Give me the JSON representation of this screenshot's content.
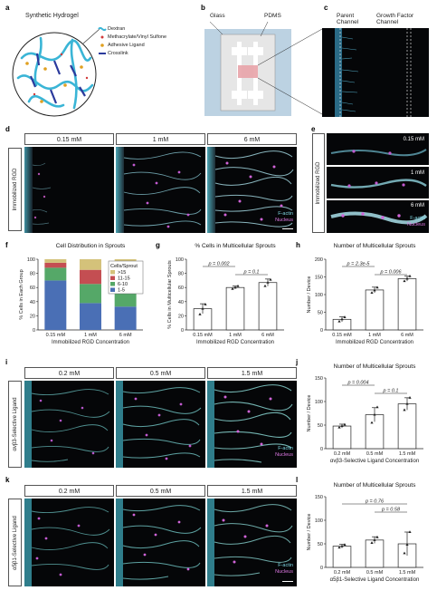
{
  "panels": {
    "a": {
      "letter": "a",
      "title": "Synthetic Hydrogel",
      "legend": [
        "Dextran",
        "Methacrylate/Vinyl Sulfone",
        "Adhesive Ligand",
        "Crosslink"
      ],
      "colors": {
        "dextran": "#3ab5d6",
        "methacrylate": "#d23a3a",
        "ligand": "#e0a020",
        "crosslink": "#2b3a9c"
      }
    },
    "b": {
      "letter": "b",
      "glass": "Glass",
      "pdms": "PDMS"
    },
    "c": {
      "letter": "c",
      "parent": "Parent\nChannel",
      "growth": "Growth Factor\nChannel"
    },
    "d": {
      "letter": "d",
      "side": "Immobilized RGD",
      "concs": [
        "0.15 mM",
        "1 mM",
        "6 mM"
      ],
      "stain1": "F-actin",
      "stain2": "Nucleus"
    },
    "e": {
      "letter": "e",
      "side": "Immobilized RGD",
      "concs": [
        "0.15 mM",
        "1 mM",
        "6 mM"
      ],
      "stain1": "F-actin",
      "stain2": "Nucleus"
    },
    "f": {
      "letter": "f"
    },
    "g": {
      "letter": "g"
    },
    "h": {
      "letter": "h"
    },
    "i": {
      "letter": "i",
      "side": "αvβ3-Selective Ligand",
      "concs": [
        "0.2 mM",
        "0.5 mM",
        "1.5 mM"
      ],
      "stain1": "F-actin",
      "stain2": "Nucleus"
    },
    "j": {
      "letter": "j"
    },
    "k": {
      "letter": "k",
      "side": "α5β1-Selective Ligand",
      "concs": [
        "0.2 mM",
        "0.5 mM",
        "1.5 mM"
      ],
      "stain1": "F-actin",
      "stain2": "Nucleus"
    },
    "l": {
      "letter": "l"
    }
  },
  "chart_data": [
    {
      "id": "f",
      "type": "bar",
      "stacked": true,
      "title": "Cell Distribution in Sprouts",
      "xlabel": "Immobilized RGD Concentration",
      "ylabel": "% Cells in Each Group",
      "categories": [
        "0.15 mM",
        "1 mM",
        "6 mM"
      ],
      "ylim": [
        0,
        100
      ],
      "yticks": [
        0,
        20,
        40,
        60,
        80,
        100
      ],
      "legend_title": "Cells/Sprout",
      "series": [
        {
          "name": "1-5",
          "values": [
            70,
            38,
            33
          ],
          "color": "#4a6fb5"
        },
        {
          "name": "6-10",
          "values": [
            18,
            27,
            27
          ],
          "color": "#55a868"
        },
        {
          "name": "11-15",
          "values": [
            7,
            20,
            17
          ],
          "color": "#c44e52"
        },
        {
          "name": ">15",
          "values": [
            5,
            15,
            23
          ],
          "color": "#d4c27a"
        }
      ]
    },
    {
      "id": "g",
      "type": "bar",
      "title": "% Cells in Multicellular Sprouts",
      "xlabel": "Immobilized RGD Concentration",
      "ylabel": "% Cells in Multicellular Sprouts",
      "categories": [
        "0.15 mM",
        "1 mM",
        "6 mM"
      ],
      "values": [
        30,
        60,
        67
      ],
      "errors": [
        7,
        2,
        5
      ],
      "points": [
        [
          22,
          30,
          36
        ],
        [
          58,
          60,
          62
        ],
        [
          62,
          67,
          71
        ]
      ],
      "ylim": [
        0,
        100
      ],
      "yticks": [
        0,
        20,
        40,
        60,
        80,
        100
      ],
      "annotations": [
        {
          "text": "p = 0.002",
          "from": 1,
          "to": 2
        },
        {
          "text": "p = 0.1",
          "from": 2,
          "to": 3
        }
      ]
    },
    {
      "id": "h",
      "type": "bar",
      "title": "Number of Multicellular Sprouts",
      "xlabel": "Immobilized RGD Concentration",
      "ylabel": "Number / Device",
      "categories": [
        "0.15 mM",
        "1 mM",
        "6 mM"
      ],
      "values": [
        30,
        113,
        145
      ],
      "errors": [
        7,
        8,
        7
      ],
      "points": [
        [
          24,
          30,
          36
        ],
        [
          105,
          112,
          120
        ],
        [
          138,
          145,
          152
        ]
      ],
      "ylim": [
        0,
        200
      ],
      "yticks": [
        0,
        50,
        100,
        150,
        200
      ],
      "annotations": [
        {
          "text": "p = 2.3e-5",
          "from": 1,
          "to": 2
        },
        {
          "text": "p = 0.006",
          "from": 2,
          "to": 3
        }
      ]
    },
    {
      "id": "j",
      "type": "bar",
      "title": "Number of Multicellular Sprouts",
      "xlabel": "αvβ3-Selective Ligand Concentration",
      "ylabel": "Number / Device",
      "categories": [
        "0.2 mM",
        "0.5 mM",
        "1.5 mM"
      ],
      "values": [
        48,
        72,
        95
      ],
      "errors": [
        4,
        15,
        13
      ],
      "points": [
        [
          45,
          48,
          51
        ],
        [
          55,
          72,
          88
        ],
        [
          82,
          95,
          108
        ]
      ],
      "ylim": [
        0,
        150
      ],
      "yticks": [
        0,
        50,
        100,
        150
      ],
      "annotations": [
        {
          "text": "p = 0.004",
          "from": 1,
          "to": 2
        },
        {
          "text": "p = 0.1",
          "from": 2,
          "to": 3
        }
      ]
    },
    {
      "id": "l",
      "type": "bar",
      "title": "Number of Multicellular Sprouts",
      "xlabel": "α5β1-Selective Ligand Concentration",
      "ylabel": "Number / Device",
      "categories": [
        "0.2 mM",
        "0.5 mM",
        "1.5 mM"
      ],
      "values": [
        45,
        58,
        50
      ],
      "errors": [
        4,
        7,
        25
      ],
      "points": [
        [
          42,
          45,
          48
        ],
        [
          52,
          58,
          64
        ],
        [
          30,
          48,
          75
        ]
      ],
      "ylim": [
        0,
        150
      ],
      "yticks": [
        0,
        50,
        100,
        150
      ],
      "annotations": [
        {
          "text": "p = 0.76",
          "from": 1,
          "to": 3
        },
        {
          "text": "p = 0.58",
          "from": 2,
          "to": 3
        }
      ]
    }
  ]
}
